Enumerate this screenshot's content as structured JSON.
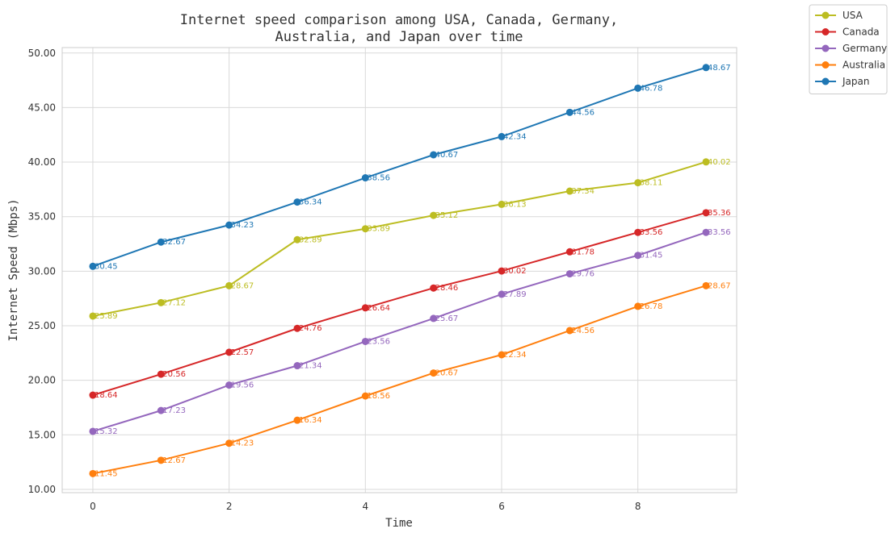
{
  "chart_data": {
    "type": "line",
    "title_line1": "Internet speed comparison among USA, Canada, Germany,",
    "title_line2": "Australia, and Japan over time",
    "xlabel": "Time",
    "ylabel": "Internet Speed (Mbps)",
    "x": [
      0,
      1,
      2,
      3,
      4,
      5,
      6,
      7,
      8,
      9
    ],
    "xlim": [
      -0.45,
      9.45
    ],
    "ylim": [
      9.7,
      50.5
    ],
    "xticks": [
      0,
      2,
      4,
      6,
      8
    ],
    "yticks": [
      10,
      15,
      20,
      25,
      30,
      35,
      40,
      45,
      50
    ],
    "ytick_format": "2dp",
    "grid": true,
    "legend_position": "upper-right-outside",
    "series": [
      {
        "name": "USA",
        "color": "#bcbd22",
        "values": [
          25.89,
          27.12,
          28.67,
          32.89,
          33.89,
          35.12,
          36.13,
          37.34,
          38.11,
          40.02
        ]
      },
      {
        "name": "Canada",
        "color": "#d62728",
        "values": [
          18.64,
          20.56,
          22.57,
          24.76,
          26.64,
          28.46,
          30.02,
          31.78,
          33.56,
          35.36
        ]
      },
      {
        "name": "Germany",
        "color": "#9467bd",
        "values": [
          15.32,
          17.23,
          19.56,
          21.34,
          23.56,
          25.67,
          27.89,
          29.76,
          31.45,
          33.56
        ]
      },
      {
        "name": "Australia",
        "color": "#ff7f0e",
        "values": [
          11.45,
          12.67,
          14.23,
          16.34,
          18.56,
          20.67,
          22.34,
          24.56,
          26.78,
          28.67
        ]
      },
      {
        "name": "Japan",
        "color": "#1f77b4",
        "values": [
          30.45,
          32.67,
          34.23,
          36.34,
          38.56,
          40.67,
          42.34,
          44.56,
          46.78,
          48.67
        ]
      }
    ]
  }
}
